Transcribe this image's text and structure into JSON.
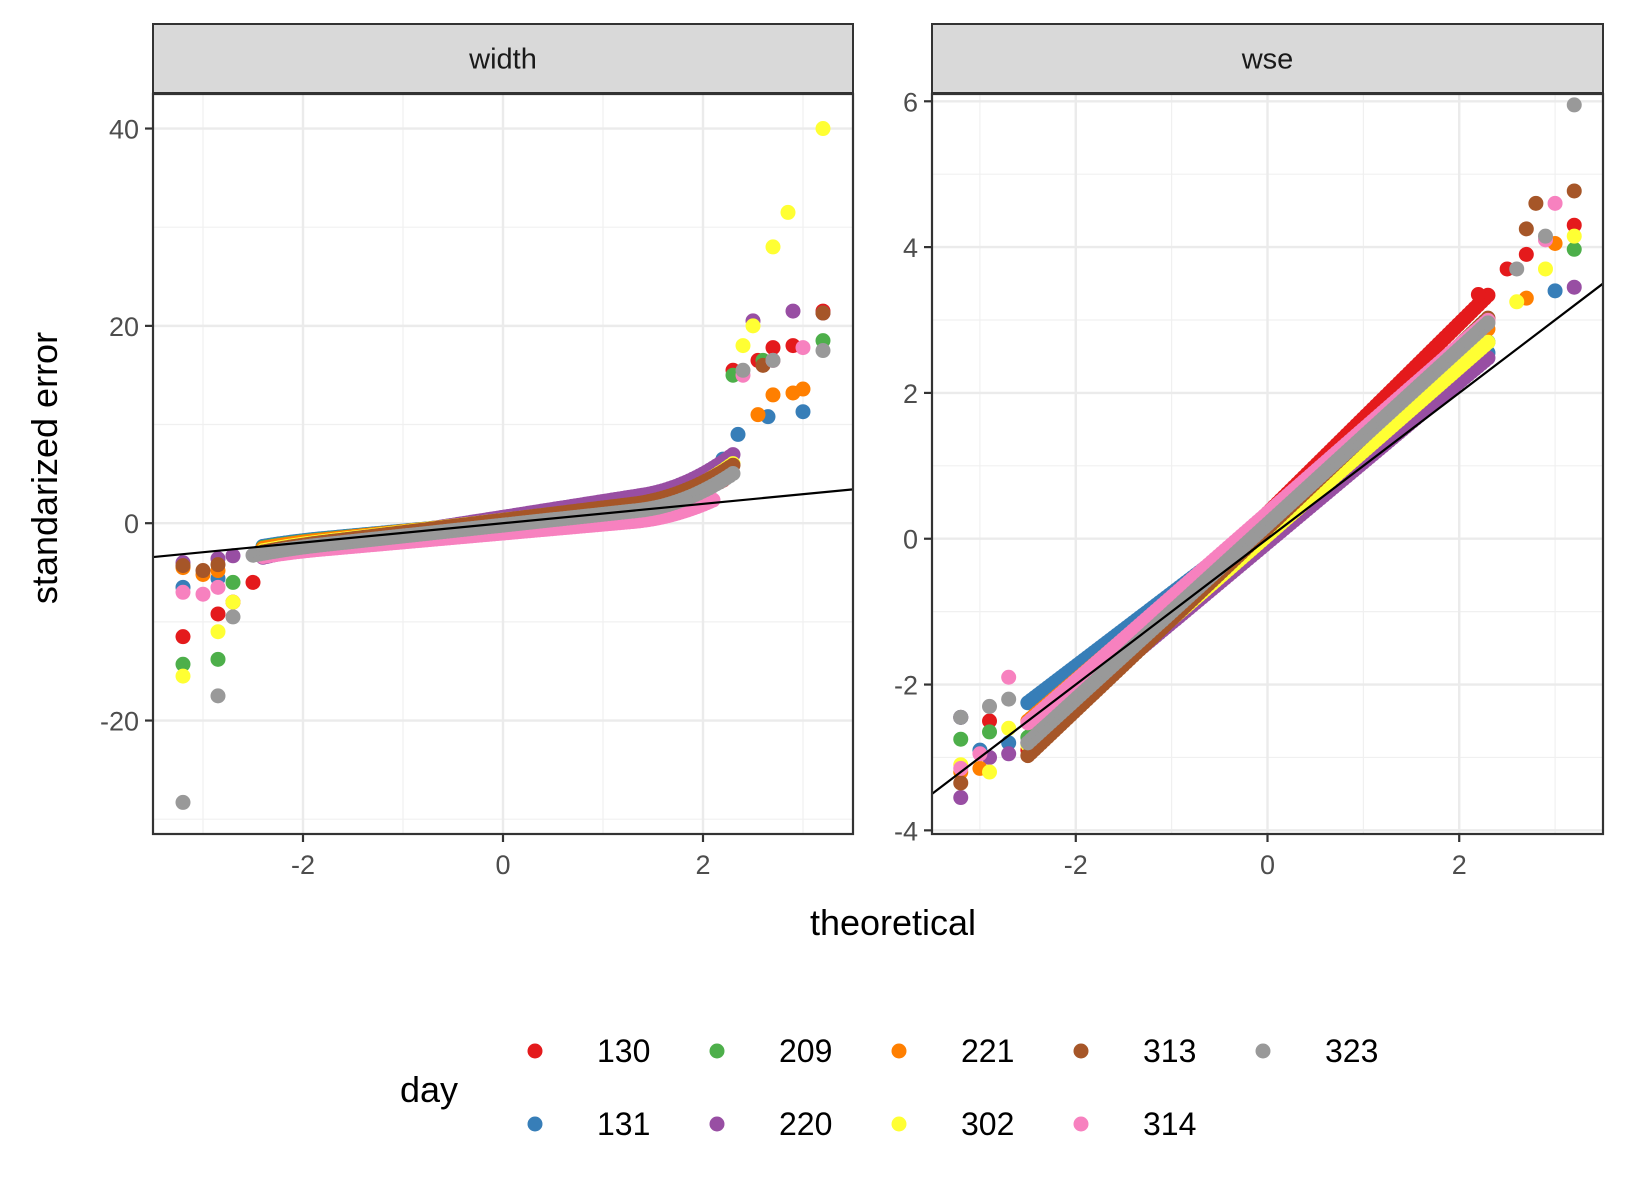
{
  "chart_data": {
    "type": "scatter",
    "subtype": "qq-facets",
    "xlabel": "theoretical",
    "ylabel": "standarized error",
    "legend": {
      "title": "day",
      "placement": "bottom",
      "entries": [
        {
          "label": "130",
          "color": "#E41A1C"
        },
        {
          "label": "131",
          "color": "#377EB8"
        },
        {
          "label": "209",
          "color": "#4DAF4A"
        },
        {
          "label": "220",
          "color": "#984EA3"
        },
        {
          "label": "221",
          "color": "#FF7F00"
        },
        {
          "label": "302",
          "color": "#FFFF33"
        },
        {
          "label": "313",
          "color": "#A65628"
        },
        {
          "label": "314",
          "color": "#F781BF"
        },
        {
          "label": "323",
          "color": "#999999"
        }
      ]
    },
    "panels": [
      {
        "strip": "width",
        "xlim": [
          -3.5,
          3.5
        ],
        "ylim": [
          -31.5,
          43.5
        ],
        "x_ticks": [
          -2,
          0,
          2
        ],
        "x_tick_labels": [
          "-2",
          "0",
          "2"
        ],
        "y_ticks": [
          -20,
          0,
          20,
          40
        ],
        "y_tick_labels": [
          "-20",
          "0",
          "20",
          "40"
        ],
        "grid": true,
        "reference_line": {
          "intercept": 0.0,
          "slope": 0.98
        },
        "series": [
          {
            "name": "130",
            "points": [
              [
                -3.2,
                -11.5
              ],
              [
                -2.85,
                -9.2
              ],
              [
                -2.7,
                -8
              ],
              [
                -2.5,
                -6
              ],
              [
                2.3,
                15.5
              ],
              [
                2.55,
                16.5
              ],
              [
                2.7,
                17.8
              ],
              [
                2.9,
                18
              ],
              [
                3.2,
                21.5
              ]
            ],
            "curve": {
              "a": 1.1,
              "b": 0.2,
              "c": 0.4,
              "k": 1.35,
              "from": -2.4,
              "to": 2.2
            }
          },
          {
            "name": "131",
            "points": [
              [
                -3.2,
                -6.5
              ],
              [
                -2.85,
                -5.6
              ],
              [
                2.2,
                6.5
              ],
              [
                2.35,
                9.0
              ],
              [
                2.65,
                10.8
              ],
              [
                3.0,
                11.3
              ]
            ],
            "curve": {
              "a": 0.95,
              "b": 0.15,
              "c": 0.4,
              "k": 1.1,
              "from": -2.4,
              "to": 2.0
            }
          },
          {
            "name": "209",
            "points": [
              [
                -3.2,
                -14.3
              ],
              [
                -2.85,
                -13.8
              ],
              [
                -2.7,
                -6
              ],
              [
                2.3,
                15
              ],
              [
                2.6,
                16.5
              ],
              [
                3.2,
                18.5
              ]
            ],
            "curve": {
              "a": 1.0,
              "b": 0.15,
              "c": 0.45,
              "k": 1.3,
              "from": -2.4,
              "to": 2.2
            }
          },
          {
            "name": "220",
            "points": [
              [
                -3.2,
                -4
              ],
              [
                -2.85,
                -3.6
              ],
              [
                -2.7,
                -3.3
              ],
              [
                2.5,
                20.5
              ],
              [
                2.9,
                21.5
              ],
              [
                3.2,
                21.3
              ]
            ],
            "curve": {
              "a": 1.6,
              "b": 0.6,
              "c": 0.55,
              "k": 1.4,
              "from": -2.4,
              "to": 2.3
            }
          },
          {
            "name": "221",
            "points": [
              [
                -3.2,
                -4.5
              ],
              [
                -3.0,
                -5.2
              ],
              [
                -2.85,
                -4.8
              ],
              [
                2.55,
                11
              ],
              [
                2.7,
                13
              ],
              [
                2.9,
                13.2
              ],
              [
                3.0,
                13.6
              ]
            ],
            "curve": {
              "a": 1.05,
              "b": 0.2,
              "c": 0.4,
              "k": 1.25,
              "from": -2.4,
              "to": 2.2
            }
          },
          {
            "name": "302",
            "points": [
              [
                -3.2,
                -15.5
              ],
              [
                -2.85,
                -11
              ],
              [
                -2.7,
                -8
              ],
              [
                2.4,
                18
              ],
              [
                2.5,
                20
              ],
              [
                2.7,
                28
              ],
              [
                2.85,
                31.5
              ],
              [
                3.2,
                40
              ]
            ],
            "curve": {
              "a": 1.2,
              "b": 0.3,
              "c": 0.55,
              "k": 1.35,
              "from": -2.4,
              "to": 2.3
            }
          },
          {
            "name": "313",
            "points": [
              [
                -3.2,
                -4.3
              ],
              [
                -3.0,
                -4.8
              ],
              [
                -2.85,
                -4.2
              ],
              [
                2.6,
                16
              ],
              [
                3.2,
                21.3
              ]
            ],
            "curve": {
              "a": 1.25,
              "b": 0.3,
              "c": 0.45,
              "k": 1.3,
              "from": -2.4,
              "to": 2.3
            }
          },
          {
            "name": "314",
            "points": [
              [
                -3.2,
                -7.0
              ],
              [
                -3.0,
                -7.2
              ],
              [
                -2.85,
                -6.5
              ],
              [
                2.4,
                15
              ],
              [
                2.7,
                16.5
              ],
              [
                3.0,
                17.8
              ]
            ],
            "curve": {
              "a": 0.9,
              "b": -1.0,
              "c": 0.38,
              "k": 1.3,
              "from": -2.4,
              "to": 2.1
            }
          },
          {
            "name": "323",
            "points": [
              [
                -3.2,
                -28.3
              ],
              [
                -2.85,
                -17.5
              ],
              [
                -2.7,
                -9.5
              ],
              [
                2.4,
                15.5
              ],
              [
                2.7,
                16.5
              ],
              [
                3.2,
                17.5
              ]
            ],
            "curve": {
              "a": 1.1,
              "b": -0.2,
              "c": 0.5,
              "k": 1.35,
              "from": -2.5,
              "to": 2.3
            }
          }
        ]
      },
      {
        "strip": "wse",
        "xlim": [
          -3.5,
          3.5
        ],
        "ylim": [
          -4.05,
          6.1
        ],
        "x_ticks": [
          -2,
          0,
          2
        ],
        "x_tick_labels": [
          "-2",
          "0",
          "2"
        ],
        "y_ticks": [
          -4,
          -2,
          0,
          2,
          4,
          6
        ],
        "y_tick_labels": [
          "-4",
          "-2",
          "0",
          "2",
          "4",
          "6"
        ],
        "grid": true,
        "reference_line": {
          "intercept": 0.0,
          "slope": 1.0
        },
        "series": [
          {
            "name": "130",
            "points": [
              [
                -3.2,
                -2.45
              ],
              [
                -2.9,
                -2.5
              ],
              [
                2.2,
                3.35
              ],
              [
                2.5,
                3.7
              ],
              [
                2.7,
                3.9
              ],
              [
                3.2,
                4.3
              ]
            ],
            "line": {
              "intercept": 0.35,
              "slope": 1.3,
              "from": -2.5,
              "to": 2.3
            }
          },
          {
            "name": "131",
            "points": [
              [
                -3.2,
                -2.45
              ],
              [
                -3.0,
                -2.9
              ],
              [
                -2.7,
                -2.8
              ],
              [
                3.0,
                3.4
              ]
            ],
            "line": {
              "intercept": 0.25,
              "slope": 1.0,
              "from": -2.5,
              "to": 2.3
            }
          },
          {
            "name": "209",
            "points": [
              [
                -3.2,
                -2.75
              ],
              [
                -2.9,
                -2.65
              ],
              [
                3.2,
                3.97
              ]
            ],
            "line": {
              "intercept": 0.1,
              "slope": 1.13,
              "from": -2.5,
              "to": 2.3
            }
          },
          {
            "name": "220",
            "points": [
              [
                -3.2,
                -3.55
              ],
              [
                -2.9,
                -3.0
              ],
              [
                -2.7,
                -2.95
              ],
              [
                3.2,
                3.45
              ]
            ],
            "line": {
              "intercept": -0.05,
              "slope": 1.1,
              "from": -2.5,
              "to": 2.3
            }
          },
          {
            "name": "221",
            "points": [
              [
                -3.2,
                -3.2
              ],
              [
                -3.0,
                -3.15
              ],
              [
                2.7,
                3.3
              ],
              [
                3.0,
                4.05
              ]
            ],
            "line": {
              "intercept": 0.3,
              "slope": 1.12,
              "from": -2.5,
              "to": 2.3
            }
          },
          {
            "name": "302",
            "points": [
              [
                -3.2,
                -3.1
              ],
              [
                -2.9,
                -3.2
              ],
              [
                -2.7,
                -2.6
              ],
              [
                2.6,
                3.25
              ],
              [
                2.9,
                3.7
              ],
              [
                3.2,
                4.15
              ]
            ],
            "line": {
              "intercept": 0.05,
              "slope": 1.15,
              "from": -2.5,
              "to": 2.3
            }
          },
          {
            "name": "313",
            "points": [
              [
                -3.2,
                -3.35
              ],
              [
                2.8,
                4.6
              ],
              [
                3.2,
                4.77
              ],
              [
                2.7,
                4.25
              ]
            ],
            "line": {
              "intercept": 0.15,
              "slope": 1.25,
              "from": -2.5,
              "to": 2.3
            }
          },
          {
            "name": "314",
            "points": [
              [
                -3.2,
                -3.15
              ],
              [
                -3.0,
                -2.95
              ],
              [
                -2.7,
                -1.9
              ],
              [
                2.9,
                4.1
              ],
              [
                3.0,
                4.6
              ]
            ],
            "line": {
              "intercept": 0.35,
              "slope": 1.15,
              "from": -2.5,
              "to": 2.3
            }
          },
          {
            "name": "323",
            "points": [
              [
                -3.2,
                -2.45
              ],
              [
                -2.9,
                -2.3
              ],
              [
                -2.7,
                -2.2
              ],
              [
                2.6,
                3.7
              ],
              [
                2.9,
                4.15
              ],
              [
                3.2,
                5.95
              ]
            ],
            "line": {
              "intercept": 0.2,
              "slope": 1.2,
              "from": -2.5,
              "to": 2.3
            }
          }
        ]
      }
    ]
  }
}
